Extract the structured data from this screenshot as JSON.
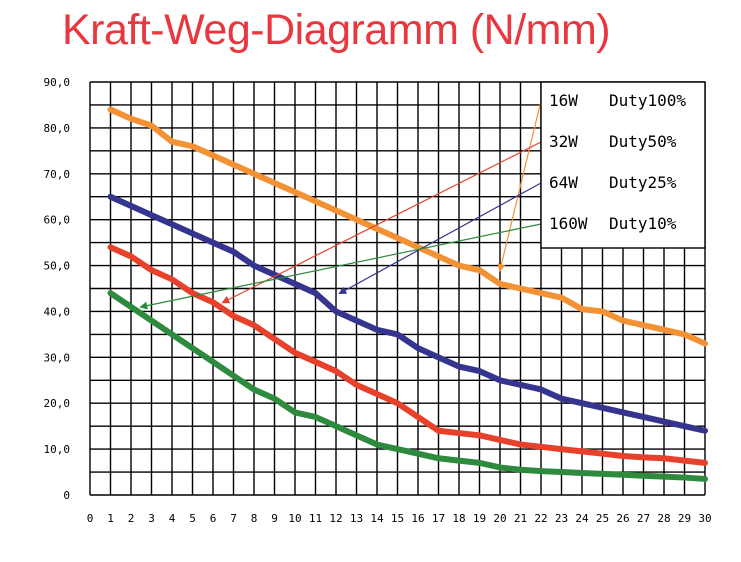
{
  "title": "Kraft-Weg-Diagramm (N/mm)",
  "chart_data": {
    "type": "line",
    "title": "Kraft-Weg-Diagramm (N/mm)",
    "xlabel": "",
    "ylabel": "",
    "xlim": [
      0,
      30
    ],
    "ylim": [
      0,
      90
    ],
    "grid": true,
    "legend_position": "top-right",
    "x": [
      1,
      2,
      3,
      4,
      5,
      6,
      7,
      8,
      9,
      10,
      11,
      12,
      13,
      14,
      15,
      16,
      17,
      18,
      19,
      20,
      21,
      22,
      23,
      24,
      25,
      26,
      27,
      28,
      29,
      30
    ],
    "x_tick_labels": [
      "0",
      "1",
      "2",
      "3",
      "4",
      "5",
      "6",
      "7",
      "8",
      "9",
      "10",
      "11",
      "12",
      "13",
      "14",
      "15",
      "16",
      "17",
      "18",
      "19",
      "20",
      "21",
      "22",
      "23",
      "24",
      "25",
      "26",
      "27",
      "28",
      "29",
      "30"
    ],
    "y_tick_labels": [
      "0",
      "10,0",
      "20,0",
      "30,0",
      "40,0",
      "50,0",
      "60,0",
      "70,0",
      "80,0",
      "90,0"
    ],
    "series": [
      {
        "name": "16W Duty100%",
        "watt": "16W",
        "duty": "Duty100%",
        "color": "#f39234",
        "values": [
          84,
          82,
          80.5,
          77,
          76,
          74,
          72,
          70,
          68,
          66,
          64,
          62,
          60,
          58,
          56,
          54,
          52,
          50,
          49,
          46,
          45,
          44,
          43,
          40.5,
          40,
          38,
          37,
          36,
          35,
          33
        ]
      },
      {
        "name": "32W Duty50%",
        "watt": "32W",
        "duty": "Duty50%",
        "color": "#e8412b",
        "values": [
          54,
          52,
          49,
          47,
          44,
          42,
          39,
          37,
          34,
          31,
          29,
          27,
          24,
          22,
          20,
          17,
          14,
          13.5,
          13,
          12,
          11,
          10.5,
          10,
          9.5,
          9,
          8.5,
          8.2,
          8,
          7.5,
          7
        ]
      },
      {
        "name": "64W Duty25%",
        "watt": "64W",
        "duty": "Duty25%",
        "color": "#35348f",
        "values": [
          65,
          63,
          61,
          59,
          57,
          55,
          53,
          50,
          48,
          46,
          44,
          40,
          38,
          36,
          35,
          32,
          30,
          28,
          27,
          25,
          24,
          23,
          21,
          20,
          19,
          18,
          17,
          16,
          15,
          14
        ]
      },
      {
        "name": "160W Duty10%",
        "watt": "160W",
        "duty": "Duty10%",
        "color": "#2e8b3e",
        "values": [
          44,
          41,
          38,
          35,
          32,
          29,
          26,
          23,
          21,
          18,
          17,
          15,
          13,
          11,
          10,
          9,
          8,
          7.5,
          7,
          6,
          5.5,
          5.2,
          5,
          4.8,
          4.6,
          4.4,
          4.2,
          4,
          3.8,
          3.5
        ]
      }
    ],
    "annotations": [
      {
        "series": "16W Duty100%",
        "color": "#f39234",
        "from_legend": true,
        "points_to": {
          "x": 20,
          "y": 49
        }
      },
      {
        "series": "32W Duty50%",
        "color": "#e8412b",
        "from_legend": true,
        "points_to": {
          "x": 6.5,
          "y": 42
        }
      },
      {
        "series": "64W Duty25%",
        "color": "#35348f",
        "from_legend": true,
        "points_to": {
          "x": 12.2,
          "y": 44
        }
      },
      {
        "series": "160W Duty10%",
        "color": "#2e8b3e",
        "from_legend": true,
        "points_to": {
          "x": 2.5,
          "y": 41
        }
      }
    ]
  }
}
